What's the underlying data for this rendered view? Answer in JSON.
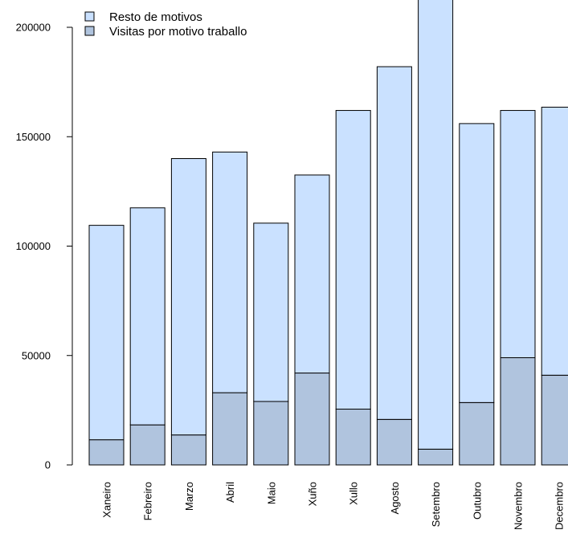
{
  "chart_data": {
    "type": "bar",
    "stacked": true,
    "categories": [
      "Xaneiro",
      "Febreiro",
      "Marzo",
      "Abril",
      "Maio",
      "Xuño",
      "Xullo",
      "Agosto",
      "Setembro",
      "Outubro",
      "Novembro",
      "Decembro"
    ],
    "series": [
      {
        "name": "Visitas por motivo traballo",
        "color": "#b0c4de",
        "values": [
          11500,
          18300,
          13700,
          33000,
          29000,
          42000,
          25500,
          20800,
          7200,
          28500,
          49000,
          41000
        ]
      },
      {
        "name": "Resto de motivos",
        "color": "#cae1ff",
        "values": [
          98000,
          99200,
          126300,
          110000,
          81500,
          90500,
          136500,
          161200,
          214800,
          127500,
          113000,
          122500
        ]
      }
    ],
    "yticks": [
      0,
      50000,
      100000,
      150000,
      200000
    ],
    "ytick_labels": [
      "0",
      "50000",
      "100000",
      "150000",
      "200000"
    ],
    "ylim": [
      0,
      222000
    ],
    "legend": {
      "placement": "top-left",
      "entries": [
        "Resto de motivos",
        "Visitas por motivo traballo"
      ],
      "colors": [
        "#cae1ff",
        "#b0c4de"
      ]
    }
  }
}
